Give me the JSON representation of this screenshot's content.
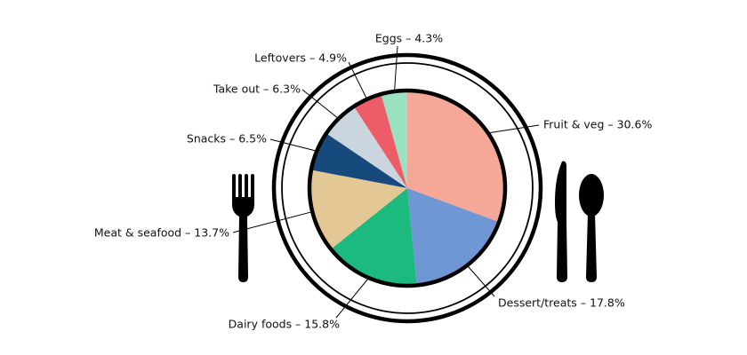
{
  "chart_data": {
    "type": "pie",
    "values": [
      30.6,
      17.8,
      15.8,
      13.7,
      6.5,
      6.3,
      4.9,
      4.3
    ],
    "value_labels": [
      "Fruit & veg – 30.6%",
      "Dessert/treats – 17.8%",
      "Dairy foods – 15.8%",
      "Meat & seafood – 13.7%",
      "Snacks – 6.5%",
      "Take out – 6.3%",
      "Leftovers – 4.9%",
      "Eggs – 4.3%"
    ],
    "colors": [
      "#f5a798",
      "#6f97d3",
      "#1dba80",
      "#e3c896",
      "#174a7c",
      "#cbd5de",
      "#ee5c67",
      "#99e1c0"
    ]
  }
}
